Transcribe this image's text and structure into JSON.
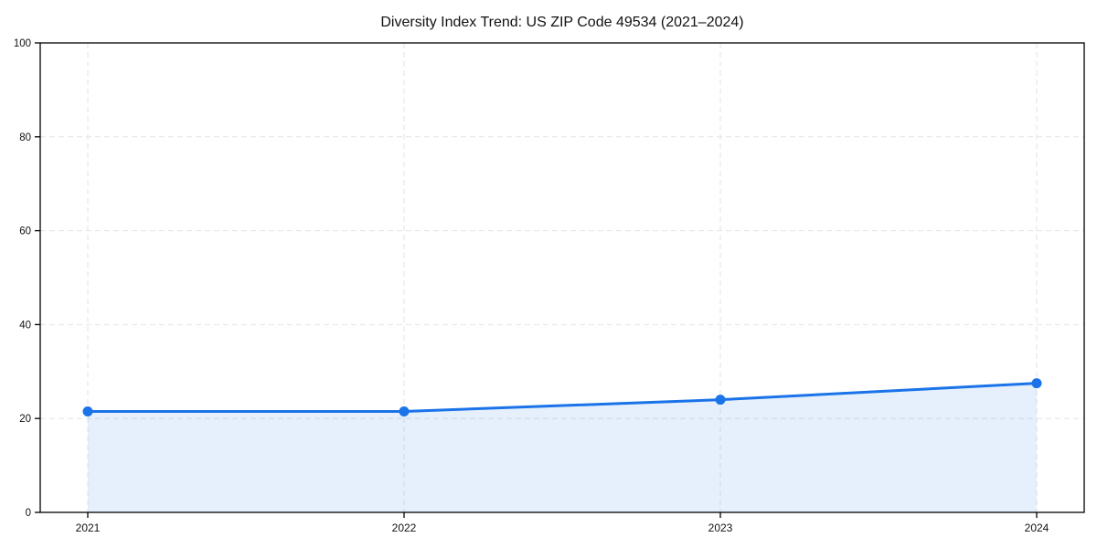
{
  "chart_data": {
    "type": "line",
    "title": "Diversity Index Trend: US ZIP Code 49534 (2021–2024)",
    "categories": [
      "2021",
      "2022",
      "2023",
      "2024"
    ],
    "series": [
      {
        "name": "Diversity Index",
        "values": [
          21.5,
          21.5,
          24,
          27.5
        ]
      }
    ],
    "xlabel": "",
    "ylabel": "",
    "ylim": [
      0,
      100
    ],
    "yticks": [
      0,
      20,
      40,
      60,
      80,
      100
    ],
    "grid": "both-dashed",
    "legend": "none",
    "area_fill": true,
    "marker": "circle",
    "colors": {
      "line": "#1a73e8",
      "marker": "#1a73e8",
      "fill": "#1a73e8",
      "fill_opacity": 0.11,
      "grid": "#e3e3e3",
      "spine": "#000000",
      "text": "#111111",
      "background": "#ffffff"
    }
  }
}
